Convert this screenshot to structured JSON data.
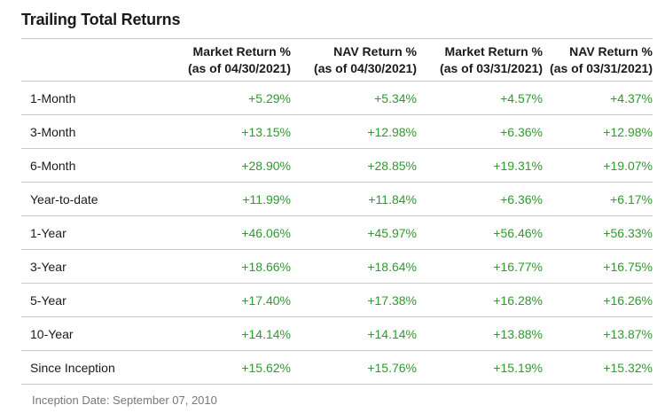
{
  "title": "Trailing Total Returns",
  "colors": {
    "positive": "#2f9a2f",
    "divider": "#c9c9c9",
    "footnote": "#777777"
  },
  "columns": [
    {
      "line1": "Market Return %",
      "line2": "(as of 04/30/2021)"
    },
    {
      "line1": "NAV Return %",
      "line2": "(as of 04/30/2021)"
    },
    {
      "line1": "Market Return %",
      "line2": "(as of 03/31/2021)"
    },
    {
      "line1": "NAV Return %",
      "line2": "(as of 03/31/2021)"
    }
  ],
  "rows": [
    {
      "label": "1-Month",
      "values": [
        "+5.29%",
        "+5.34%",
        "+4.57%",
        "+4.37%"
      ]
    },
    {
      "label": "3-Month",
      "values": [
        "+13.15%",
        "+12.98%",
        "+6.36%",
        "+12.98%"
      ]
    },
    {
      "label": "6-Month",
      "values": [
        "+28.90%",
        "+28.85%",
        "+19.31%",
        "+19.07%"
      ]
    },
    {
      "label": "Year-to-date",
      "values": [
        "+11.99%",
        "+11.84%",
        "+6.36%",
        "+6.17%"
      ]
    },
    {
      "label": "1-Year",
      "values": [
        "+46.06%",
        "+45.97%",
        "+56.46%",
        "+56.33%"
      ]
    },
    {
      "label": "3-Year",
      "values": [
        "+18.66%",
        "+18.64%",
        "+16.77%",
        "+16.75%"
      ]
    },
    {
      "label": "5-Year",
      "values": [
        "+17.40%",
        "+17.38%",
        "+16.28%",
        "+16.26%"
      ]
    },
    {
      "label": "10-Year",
      "values": [
        "+14.14%",
        "+14.14%",
        "+13.88%",
        "+13.87%"
      ]
    },
    {
      "label": "Since Inception",
      "values": [
        "+15.62%",
        "+15.76%",
        "+15.19%",
        "+15.32%"
      ]
    }
  ],
  "footnote": "Inception Date: September 07, 2010"
}
